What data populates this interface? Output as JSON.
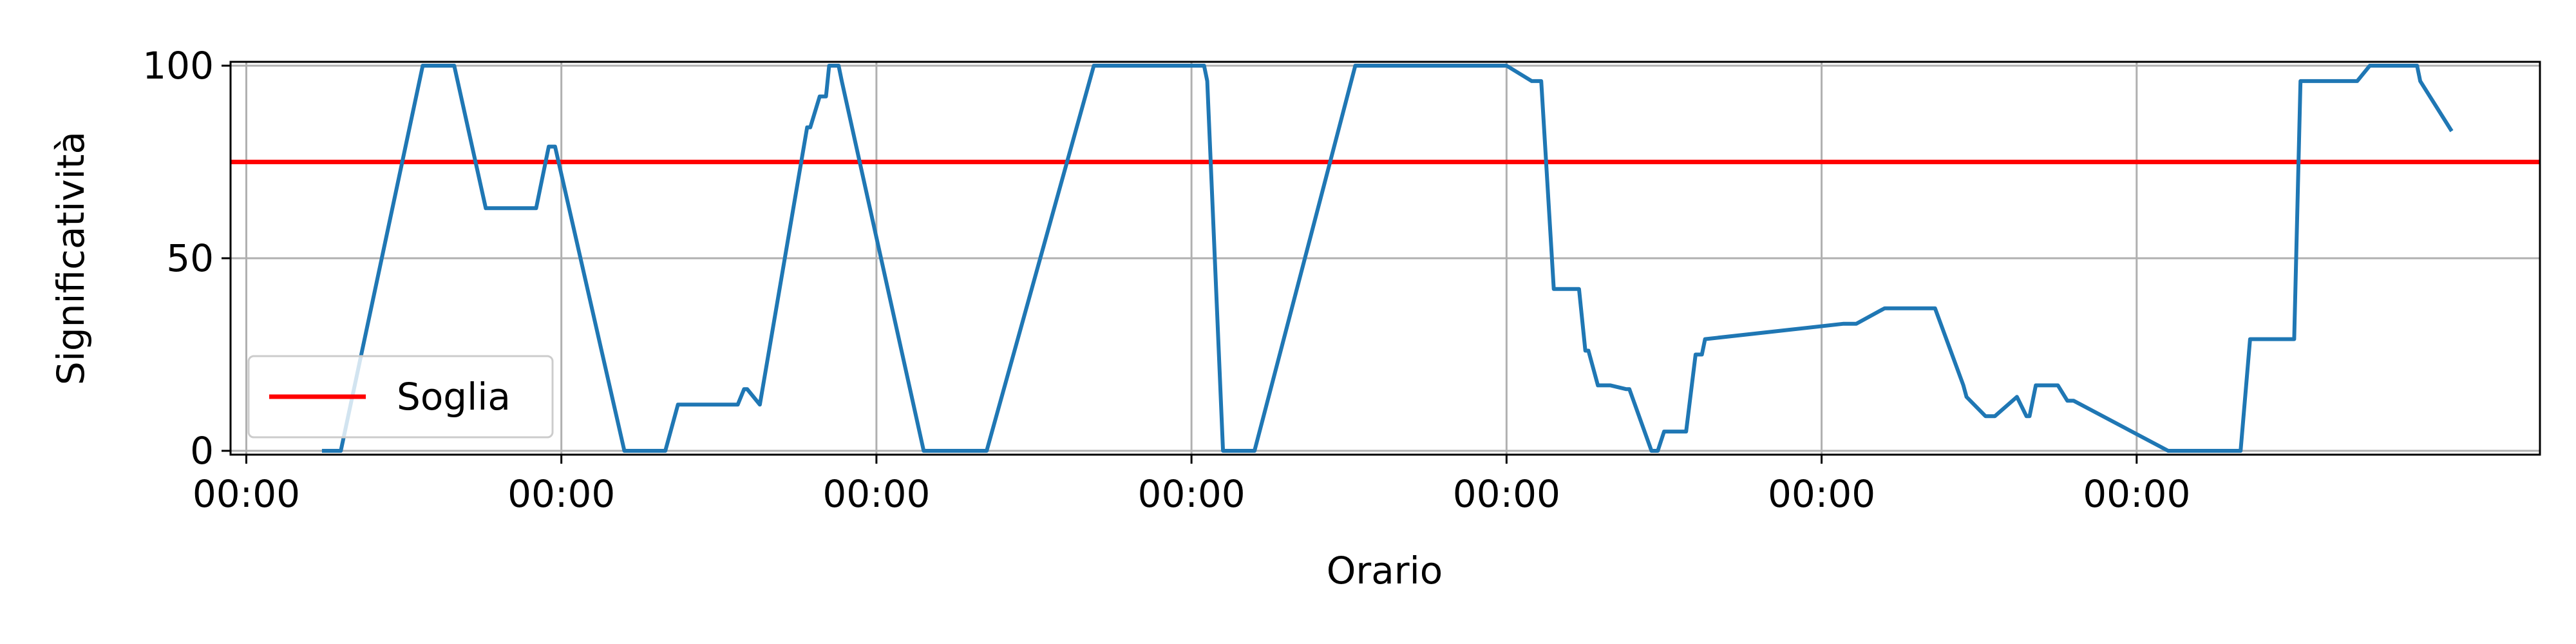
{
  "chart_data": {
    "type": "line",
    "title": "",
    "xlabel": "Orario",
    "ylabel": "Significatività",
    "x_tick_labels": [
      "00:00",
      "00:00",
      "00:00",
      "00:00",
      "00:00",
      "00:00",
      "00:00"
    ],
    "y_ticks": [
      0,
      50,
      100
    ],
    "ylim": [
      -1,
      101
    ],
    "grid": true,
    "legend": {
      "position": "lower-left",
      "entries": [
        "Soglia"
      ]
    },
    "threshold": {
      "name": "Soglia",
      "value": 75,
      "color": "#ff0000"
    },
    "series": [
      {
        "name": "",
        "color": "#1f77b4",
        "x": [
          0.24,
          0.3,
          0.56,
          0.66,
          0.76,
          0.92,
          0.96,
          0.98,
          1.2,
          1.33,
          1.37,
          1.56,
          1.58,
          1.59,
          1.63,
          1.78,
          1.79,
          1.82,
          1.84,
          1.85,
          1.88,
          1.89,
          2.15,
          2.34,
          2.35,
          2.69,
          3.04,
          3.05,
          3.1,
          3.2,
          3.52,
          3.54,
          4.0,
          4.08,
          4.11,
          4.15,
          4.23,
          4.25,
          4.26,
          4.29,
          4.32,
          4.33,
          4.38,
          4.39,
          4.46,
          4.48,
          4.5,
          4.52,
          4.55,
          4.57,
          4.6,
          4.62,
          4.63,
          5.07,
          5.11,
          5.2,
          5.34,
          5.36,
          5.45,
          5.46,
          5.52,
          5.55,
          5.62,
          5.65,
          5.66,
          5.68,
          5.7,
          5.75,
          5.78,
          5.8,
          6.1,
          6.12,
          6.33,
          6.36,
          6.5,
          6.52,
          6.7,
          6.74,
          6.89,
          6.9,
          7.0
        ],
        "values": [
          0,
          0,
          100,
          100,
          63,
          63,
          79,
          79,
          0,
          0,
          12,
          12,
          16,
          16,
          12,
          84,
          84,
          92,
          92,
          100,
          100,
          96,
          0,
          0,
          0,
          100,
          100,
          96,
          0,
          0,
          100,
          100,
          100,
          96,
          96,
          42,
          42,
          26,
          26,
          17,
          17,
          17,
          16,
          16,
          0,
          0,
          5,
          5,
          5,
          5,
          25,
          25,
          29,
          33,
          33,
          37,
          37,
          37,
          17,
          14,
          9,
          9,
          14,
          9,
          9,
          17,
          17,
          17,
          13,
          13,
          0,
          0,
          0,
          29,
          29,
          96,
          96,
          100,
          100,
          96,
          83
        ]
      }
    ]
  }
}
